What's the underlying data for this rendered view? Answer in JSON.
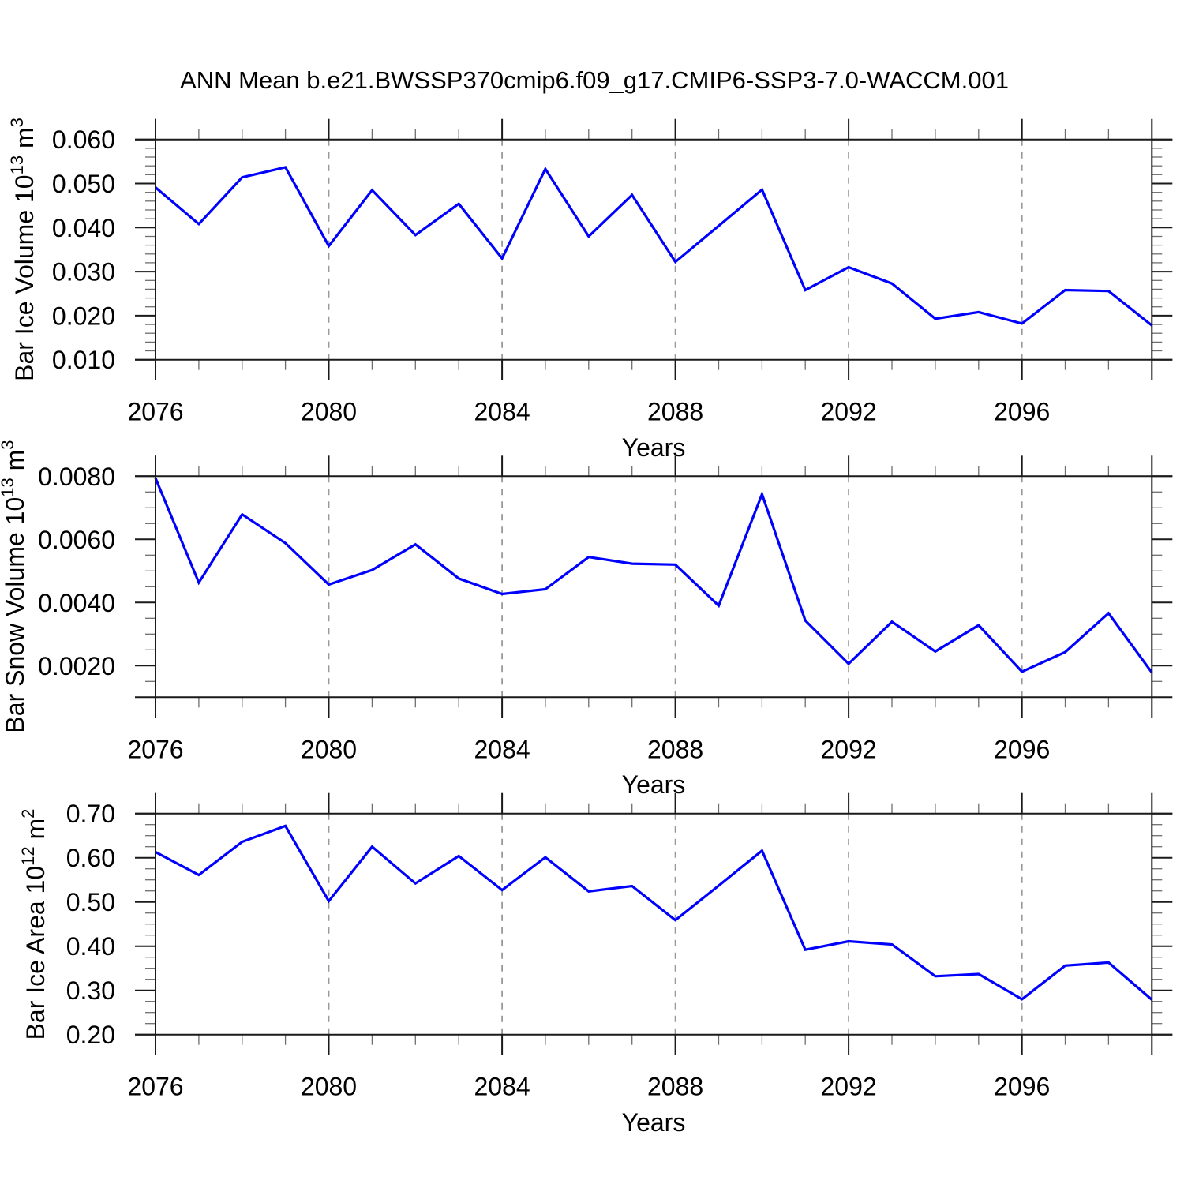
{
  "title": "ANN Mean b.e21.BWSSP370cmip6.f09_g17.CMIP6-SSP3-7.0-WACCM.001",
  "xlabel": "Years",
  "colors": {
    "line": "#0000ff",
    "axis": "#1a1a1a",
    "minor_tick": "#6e6e6e",
    "gridline": "#999999",
    "background": "#ffffff"
  },
  "years": [
    2076,
    2077,
    2078,
    2079,
    2080,
    2081,
    2082,
    2083,
    2084,
    2085,
    2086,
    2087,
    2088,
    2089,
    2090,
    2091,
    2092,
    2093,
    2094,
    2095,
    2096,
    2097,
    2098,
    2099
  ],
  "x_major_ticks": [
    2076,
    2080,
    2084,
    2088,
    2092,
    2096
  ],
  "x_gridlines": [
    2080,
    2084,
    2088,
    2092,
    2096
  ],
  "xlim": [
    2076,
    2099
  ],
  "chart_data": [
    {
      "type": "line",
      "name": "bar-ice-volume",
      "ylabel": "Bar Ice Volume 10^13 m^3",
      "ylabel_parts": {
        "pre": "Bar Ice Volume 10",
        "exp": "13",
        "unit": " m",
        "unit_exp": "3"
      },
      "xlabel": "Years",
      "ylim": [
        0.01,
        0.06
      ],
      "yminor_step": 0.002,
      "grid": "vertical-dashed",
      "legend": "none",
      "yticks": [
        {
          "v": 0.06,
          "label": "0.060"
        },
        {
          "v": 0.05,
          "label": "0.050"
        },
        {
          "v": 0.04,
          "label": "0.040"
        },
        {
          "v": 0.03,
          "label": "0.030"
        },
        {
          "v": 0.02,
          "label": "0.020"
        },
        {
          "v": 0.01,
          "label": "0.010"
        }
      ],
      "values": [
        0.0491,
        0.0408,
        0.0514,
        0.0537,
        0.0358,
        0.0485,
        0.0383,
        0.0454,
        0.033,
        0.0533,
        0.038,
        0.0474,
        0.0322,
        0.0404,
        0.0486,
        0.0258,
        0.031,
        0.0273,
        0.0193,
        0.0208,
        0.0182,
        0.0258,
        0.0256,
        0.0178
      ]
    },
    {
      "type": "line",
      "name": "bar-snow-volume",
      "ylabel": "Bar Snow Volume 10^13 m^3",
      "ylabel_parts": {
        "pre": "Bar Snow Volume 10",
        "exp": "13",
        "unit": " m",
        "unit_exp": "3"
      },
      "xlabel": "Years",
      "ylim": [
        0.001,
        0.008
      ],
      "yminor_step": 0.0005,
      "grid": "vertical-dashed",
      "legend": "none",
      "yticks": [
        {
          "v": 0.008,
          "label": "0.0080"
        },
        {
          "v": 0.006,
          "label": "0.0060"
        },
        {
          "v": 0.004,
          "label": "0.0040"
        },
        {
          "v": 0.002,
          "label": "0.0020"
        }
      ],
      "values": [
        0.00794,
        0.00463,
        0.00679,
        0.00588,
        0.00457,
        0.00503,
        0.00584,
        0.00476,
        0.00427,
        0.00442,
        0.00544,
        0.00523,
        0.0052,
        0.0039,
        0.00743,
        0.00343,
        0.00206,
        0.00339,
        0.00245,
        0.00328,
        0.00181,
        0.00243,
        0.00366,
        0.00178
      ]
    },
    {
      "type": "line",
      "name": "bar-ice-area",
      "ylabel": "Bar Ice Area 10^12 m^2",
      "ylabel_parts": {
        "pre": "Bar Ice Area 10",
        "exp": "12",
        "unit": " m",
        "unit_exp": "2"
      },
      "xlabel": "Years",
      "ylim": [
        0.2,
        0.7
      ],
      "yminor_step": 0.025,
      "grid": "vertical-dashed",
      "legend": "none",
      "yticks": [
        {
          "v": 0.7,
          "label": "0.70"
        },
        {
          "v": 0.6,
          "label": "0.60"
        },
        {
          "v": 0.5,
          "label": "0.50"
        },
        {
          "v": 0.4,
          "label": "0.40"
        },
        {
          "v": 0.3,
          "label": "0.30"
        },
        {
          "v": 0.2,
          "label": "0.20"
        }
      ],
      "values": [
        0.613,
        0.561,
        0.636,
        0.672,
        0.502,
        0.625,
        0.542,
        0.604,
        0.527,
        0.601,
        0.524,
        0.536,
        0.459,
        0.537,
        0.616,
        0.392,
        0.411,
        0.404,
        0.332,
        0.337,
        0.28,
        0.356,
        0.363,
        0.279
      ]
    }
  ]
}
